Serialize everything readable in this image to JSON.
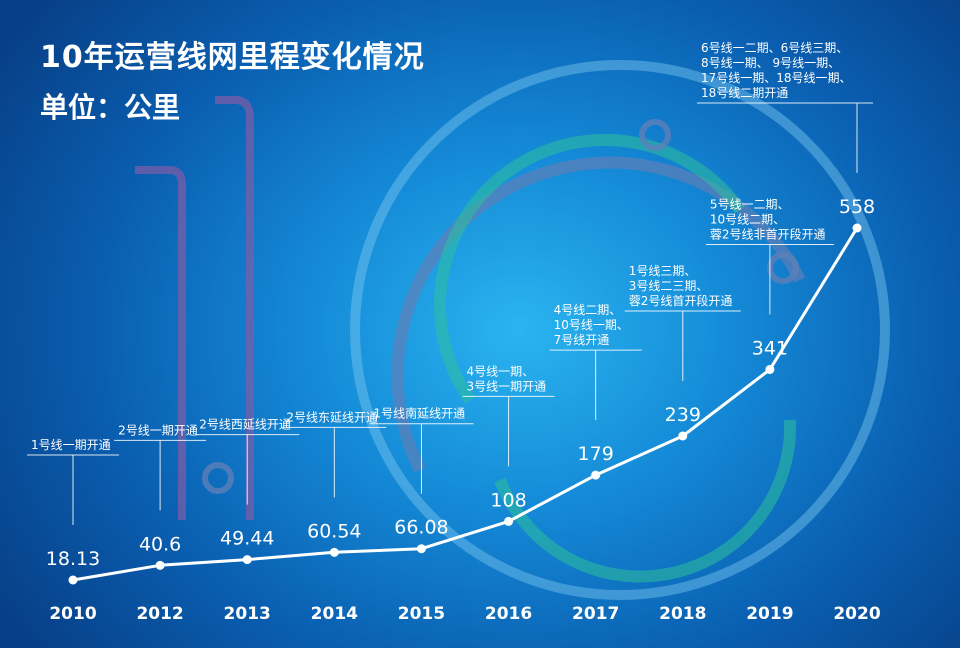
{
  "title": "10年运营线网里程变化情况",
  "unit_label": "单位：公里",
  "colors": {
    "line": "#ffffff",
    "background": "#1489d6",
    "text": "#ffffff"
  },
  "chart_data": {
    "type": "line",
    "title": "10年运营线网里程变化情况",
    "ylabel": "单位：公里",
    "ylim": [
      0,
      600
    ],
    "grid": false,
    "x": [
      "2010",
      "2012",
      "2013",
      "2014",
      "2015",
      "2016",
      "2017",
      "2018",
      "2019",
      "2020"
    ],
    "values": [
      18.13,
      40.6,
      49.44,
      60.54,
      66.08,
      108,
      179,
      239,
      341,
      558
    ],
    "value_labels": [
      "18.13",
      "40.6",
      "49.44",
      "60.54",
      "66.08",
      "108",
      "179",
      "239",
      "341",
      "558"
    ],
    "annotations": [
      [
        "1号线一期开通"
      ],
      [
        "2号线一期开通"
      ],
      [
        "2号线西延线开通"
      ],
      [
        "2号线东延线开通"
      ],
      [
        "1号线南延线开通"
      ],
      [
        "4号线一期、",
        "3号线一期开通"
      ],
      [
        "4号线二期、",
        "10号线一期、",
        "7号线开通"
      ],
      [
        "1号线三期、",
        "3号线二三期、",
        "蓉2号线首开段开通"
      ],
      [
        "5号线一二期、",
        "10号线二期、",
        "蓉2号线非首开段开通"
      ],
      [
        "6号线一二期、6号线三期、",
        "8号线一期、 9号线一期、",
        "17号线一期、18号线一期、",
        "18号线二期开通"
      ]
    ]
  }
}
